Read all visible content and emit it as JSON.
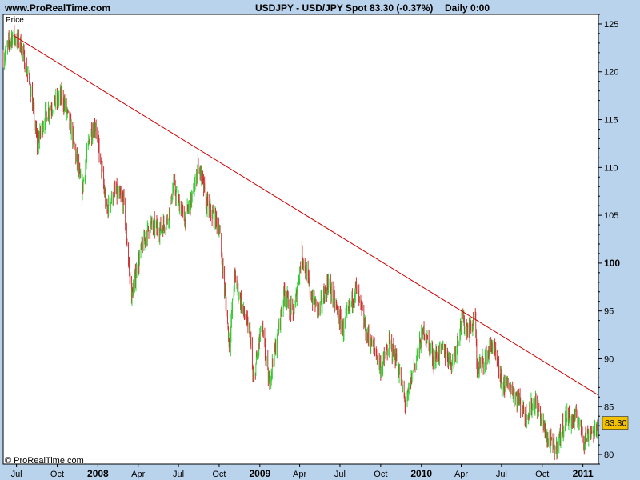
{
  "header": {
    "site": "www.ProRealTime.com",
    "symbol": "USDJPY - USD/JPY Spot",
    "quote": "83.30 (-0.37%)",
    "period": "Daily  0:00"
  },
  "footer": {
    "copyright": "© ProRealTime.com"
  },
  "colors": {
    "background": "#b9d3ec",
    "plot_background": "#ffffff",
    "up_candle": "#33cc33",
    "down_candle": "#cc3333",
    "trendline": "#cc0000",
    "last_price_label": "#f2c200"
  },
  "chart_data": {
    "type": "line",
    "title": "USDJPY - USD/JPY Spot",
    "panel_label": "Price",
    "ylim": [
      79,
      126
    ],
    "y_ticks": [
      80,
      85,
      90,
      95,
      100,
      105,
      110,
      115,
      120,
      125
    ],
    "y_tick_labels": [
      "80",
      "85",
      "90",
      "95",
      "100",
      "105",
      "110",
      "115",
      "120",
      "125"
    ],
    "y_tick_bold": [
      false,
      false,
      false,
      false,
      true,
      false,
      false,
      false,
      false,
      false
    ],
    "x_tick_labels": [
      "Jul",
      "Oct",
      "2008",
      "Apr",
      "Jul",
      "Oct",
      "2009",
      "Apr",
      "Jul",
      "Oct",
      "2010",
      "Apr",
      "Jul",
      "Oct",
      "2011"
    ],
    "x_tick_dates": [
      "2007-07-01",
      "2007-10-01",
      "2008-01-01",
      "2008-04-01",
      "2008-07-01",
      "2008-10-01",
      "2009-01-01",
      "2009-04-01",
      "2009-07-01",
      "2009-10-01",
      "2010-01-01",
      "2010-04-01",
      "2010-07-01",
      "2010-10-01",
      "2011-01-01"
    ],
    "x_tick_bold": [
      false,
      false,
      true,
      false,
      false,
      false,
      true,
      false,
      false,
      false,
      true,
      false,
      false,
      false,
      true
    ],
    "x_range": [
      "2007-06-01",
      "2011-02-05"
    ],
    "series": [
      {
        "values": [
          [
            "2007-06-01",
            121.5
          ],
          [
            "2007-06-22",
            123.8
          ],
          [
            "2007-07-10",
            123.0
          ],
          [
            "2007-08-01",
            118.5
          ],
          [
            "2007-08-17",
            112.5
          ],
          [
            "2007-09-05",
            115.5
          ],
          [
            "2007-09-20",
            116.5
          ],
          [
            "2007-10-12",
            117.5
          ],
          [
            "2007-11-02",
            114.0
          ],
          [
            "2007-11-26",
            107.5
          ],
          [
            "2007-12-14",
            113.5
          ],
          [
            "2007-12-27",
            114.5
          ],
          [
            "2008-01-21",
            105.5
          ],
          [
            "2008-02-08",
            107.5
          ],
          [
            "2008-02-28",
            106.5
          ],
          [
            "2008-03-17",
            96.5
          ],
          [
            "2008-04-08",
            101.5
          ],
          [
            "2008-04-28",
            104.0
          ],
          [
            "2008-05-20",
            103.5
          ],
          [
            "2008-06-06",
            104.5
          ],
          [
            "2008-06-20",
            108.0
          ],
          [
            "2008-07-15",
            104.5
          ],
          [
            "2008-08-05",
            107.5
          ],
          [
            "2008-08-15",
            110.5
          ],
          [
            "2008-09-04",
            106.0
          ],
          [
            "2008-09-30",
            104.0
          ],
          [
            "2008-10-10",
            99.0
          ],
          [
            "2008-10-24",
            91.5
          ],
          [
            "2008-11-05",
            98.5
          ],
          [
            "2008-11-24",
            95.0
          ],
          [
            "2008-12-10",
            92.5
          ],
          [
            "2008-12-17",
            87.5
          ],
          [
            "2009-01-05",
            93.5
          ],
          [
            "2009-01-21",
            87.5
          ],
          [
            "2009-02-05",
            91.0
          ],
          [
            "2009-02-25",
            97.0
          ],
          [
            "2009-03-18",
            94.5
          ],
          [
            "2009-04-06",
            101.0
          ],
          [
            "2009-04-28",
            96.5
          ],
          [
            "2009-05-14",
            95.0
          ],
          [
            "2009-06-05",
            98.0
          ],
          [
            "2009-07-08",
            93.0
          ],
          [
            "2009-08-06",
            97.5
          ],
          [
            "2009-08-31",
            92.5
          ],
          [
            "2009-09-17",
            91.0
          ],
          [
            "2009-10-02",
            89.0
          ],
          [
            "2009-10-21",
            91.5
          ],
          [
            "2009-11-06",
            90.0
          ],
          [
            "2009-11-27",
            85.0
          ],
          [
            "2009-12-14",
            89.0
          ],
          [
            "2010-01-07",
            93.0
          ],
          [
            "2010-01-29",
            90.0
          ],
          [
            "2010-02-19",
            91.0
          ],
          [
            "2010-03-12",
            89.5
          ],
          [
            "2010-04-02",
            94.0
          ],
          [
            "2010-04-20",
            93.0
          ],
          [
            "2010-05-03",
            94.5
          ],
          [
            "2010-05-06",
            89.0
          ],
          [
            "2010-05-25",
            90.0
          ],
          [
            "2010-06-11",
            91.5
          ],
          [
            "2010-07-01",
            87.5
          ],
          [
            "2010-07-22",
            87.0
          ],
          [
            "2010-08-11",
            85.5
          ],
          [
            "2010-08-24",
            84.0
          ],
          [
            "2010-09-15",
            85.5
          ],
          [
            "2010-09-30",
            83.5
          ],
          [
            "2010-10-14",
            81.5
          ],
          [
            "2010-11-01",
            80.5
          ],
          [
            "2010-11-24",
            84.0
          ],
          [
            "2010-12-08",
            83.5
          ],
          [
            "2010-12-20",
            84.0
          ],
          [
            "2011-01-04",
            81.5
          ],
          [
            "2011-01-18",
            82.5
          ],
          [
            "2011-01-28",
            82.0
          ],
          [
            "2011-02-03",
            83.3
          ]
        ]
      }
    ],
    "trendline": {
      "start": [
        "2007-06-24",
        123.8
      ],
      "end": [
        "2011-02-05",
        86.2
      ]
    },
    "last_price": "83.30",
    "last_value": 83.3
  }
}
